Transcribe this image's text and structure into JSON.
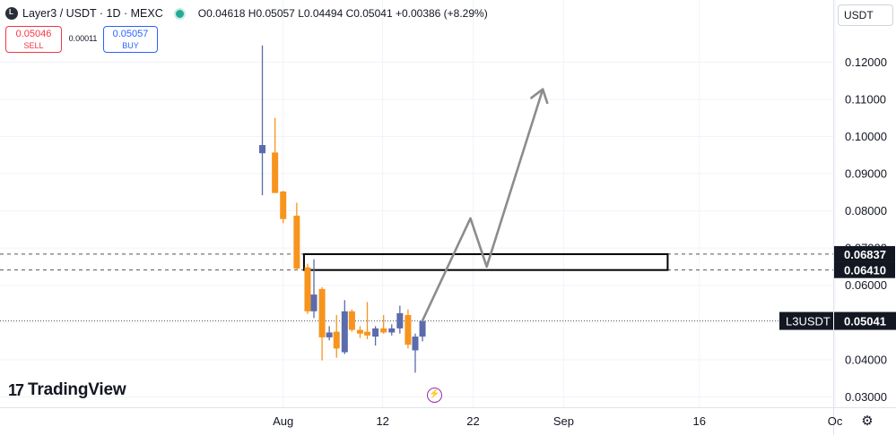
{
  "header": {
    "symbol": "Layer3 / USDT · 1D · MEXC",
    "ohlc": "O0.04618 H0.05057 L0.04494 C0.05041 +0.00386 (+8.29%)"
  },
  "trade": {
    "sell_price": "0.05046",
    "sell_label": "SELL",
    "spread": "0.00011",
    "buy_price": "0.05057",
    "buy_label": "BUY"
  },
  "currency": "USDT",
  "branding": "TradingView",
  "colors": {
    "up": "#5b6bab",
    "down": "#f7941d",
    "grid": "#f0f3fa",
    "arrow": "#8c8c8c",
    "dashed": "#555555"
  },
  "chart_data": {
    "type": "candlestick",
    "symbol_tag": "L3USDT",
    "last_price": "0.05041",
    "y_ticks": [
      "0.12000",
      "0.11000",
      "0.10000",
      "0.09000",
      "0.08000",
      "0.07000",
      "0.06000",
      "0.05000",
      "0.04000",
      "0.03000"
    ],
    "ylim": [
      0.0272,
      0.1367
    ],
    "x_ticks": [
      {
        "label": "Aug",
        "day": 0
      },
      {
        "label": "12",
        "day": 11
      },
      {
        "label": "22",
        "day": 21
      },
      {
        "label": "Sep",
        "day": 31
      },
      {
        "label": "16",
        "day": 46
      },
      {
        "label": "Oc",
        "day": 61
      }
    ],
    "xlim": [
      -31.3,
      60.8
    ],
    "levels": [
      {
        "price": 0.06837,
        "label": "0.06837"
      },
      {
        "price": 0.0641,
        "label": "0.06410"
      }
    ],
    "zone": {
      "start_day": 2.3,
      "end_day": 42.5,
      "top": 0.06837,
      "bottom": 0.0641
    },
    "candles": [
      {
        "day": -2.3,
        "o": 0.0955,
        "h": 0.1245,
        "l": 0.0842,
        "c": 0.0977
      },
      {
        "day": -0.9,
        "o": 0.0957,
        "h": 0.105,
        "l": 0.085,
        "c": 0.0848
      },
      {
        "day": 0.0,
        "o": 0.0852,
        "h": 0.0854,
        "l": 0.0767,
        "c": 0.0778
      },
      {
        "day": 1.5,
        "o": 0.0787,
        "h": 0.0822,
        "l": 0.064,
        "c": 0.0645
      },
      {
        "day": 2.7,
        "o": 0.0648,
        "h": 0.0658,
        "l": 0.0523,
        "c": 0.053
      },
      {
        "day": 3.4,
        "o": 0.053,
        "h": 0.067,
        "l": 0.0512,
        "c": 0.0575
      },
      {
        "day": 4.3,
        "o": 0.059,
        "h": 0.0595,
        "l": 0.0398,
        "c": 0.046
      },
      {
        "day": 5.1,
        "o": 0.046,
        "h": 0.049,
        "l": 0.0452,
        "c": 0.0473
      },
      {
        "day": 5.9,
        "o": 0.0475,
        "h": 0.052,
        "l": 0.0405,
        "c": 0.043
      },
      {
        "day": 6.8,
        "o": 0.042,
        "h": 0.056,
        "l": 0.0415,
        "c": 0.053
      },
      {
        "day": 7.6,
        "o": 0.053,
        "h": 0.0535,
        "l": 0.0475,
        "c": 0.048
      },
      {
        "day": 8.5,
        "o": 0.048,
        "h": 0.049,
        "l": 0.0458,
        "c": 0.047
      },
      {
        "day": 9.3,
        "o": 0.0475,
        "h": 0.0555,
        "l": 0.0455,
        "c": 0.0465
      },
      {
        "day": 10.2,
        "o": 0.0462,
        "h": 0.049,
        "l": 0.0438,
        "c": 0.0484
      },
      {
        "day": 11.1,
        "o": 0.0484,
        "h": 0.052,
        "l": 0.047,
        "c": 0.0473
      },
      {
        "day": 12.0,
        "o": 0.0473,
        "h": 0.0495,
        "l": 0.0465,
        "c": 0.0484
      },
      {
        "day": 12.9,
        "o": 0.0484,
        "h": 0.0545,
        "l": 0.047,
        "c": 0.0525
      },
      {
        "day": 13.8,
        "o": 0.052,
        "h": 0.0535,
        "l": 0.043,
        "c": 0.044
      },
      {
        "day": 14.6,
        "o": 0.0425,
        "h": 0.047,
        "l": 0.0365,
        "c": 0.0462
      },
      {
        "day": 15.4,
        "o": 0.0462,
        "h": 0.0506,
        "l": 0.0449,
        "c": 0.0504
      }
    ],
    "projection": [
      {
        "day": 15.4,
        "price": 0.0505
      },
      {
        "day": 20.7,
        "price": 0.078
      },
      {
        "day": 22.5,
        "price": 0.065
      },
      {
        "day": 28.7,
        "price": 0.1127
      }
    ]
  }
}
